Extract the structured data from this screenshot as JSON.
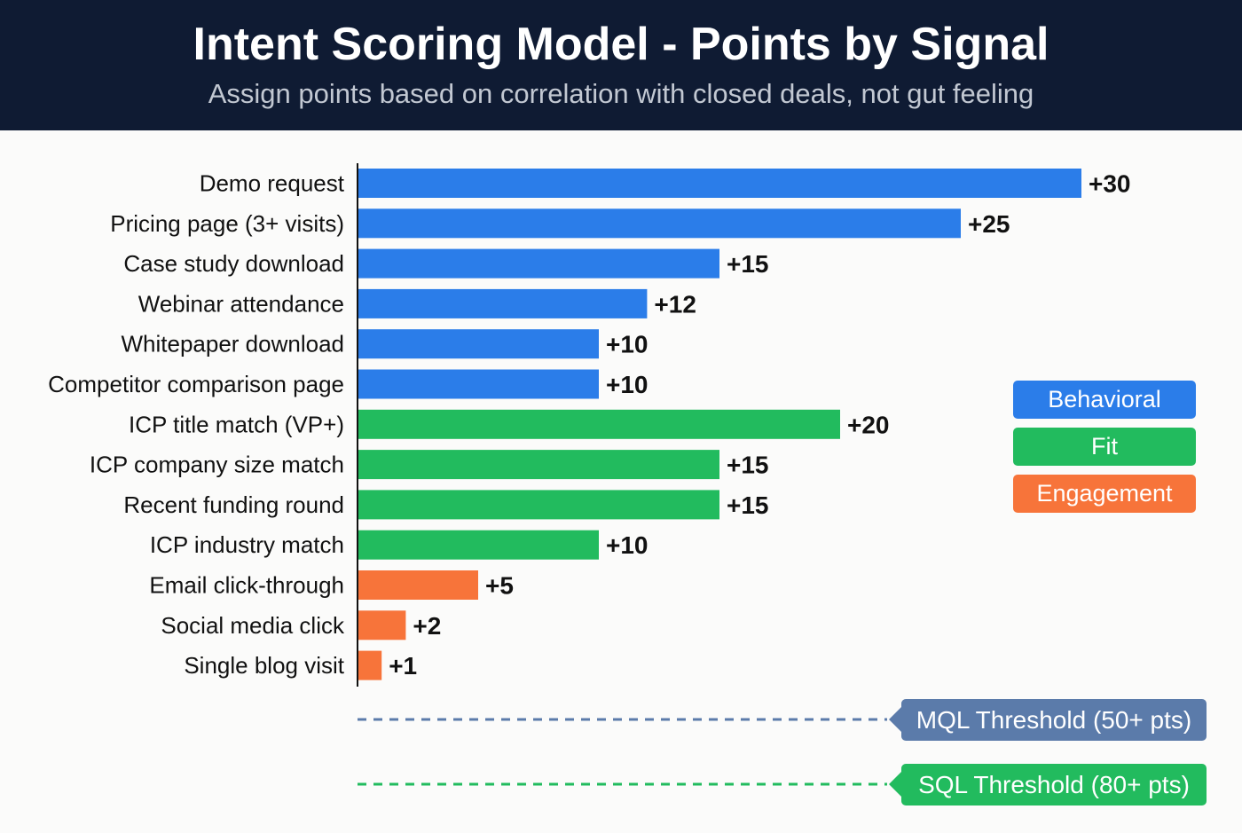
{
  "header": {
    "title": "Intent Scoring Model - Points by Signal",
    "subtitle": "Assign points based on correlation with closed deals, not gut feeling"
  },
  "colors": {
    "Behavioral": "#2b7de9",
    "Fit": "#22bb5e",
    "Engagement": "#f7743a",
    "mql": "#5b7baa",
    "sql": "#22bb5e"
  },
  "chart_data": {
    "type": "bar",
    "orientation": "horizontal",
    "title": "Intent Scoring Model - Points by Signal",
    "categories": [
      "Demo request",
      "Pricing page (3+ visits)",
      "Case study download",
      "Webinar attendance",
      "Whitepaper download",
      "Competitor comparison page",
      "ICP title match (VP+)",
      "ICP company size match",
      "Recent funding round",
      "ICP industry match",
      "Email click-through",
      "Social media click",
      "Single blog visit"
    ],
    "values": [
      30,
      25,
      15,
      12,
      10,
      10,
      20,
      15,
      15,
      10,
      5,
      2,
      1
    ],
    "groups": [
      "Behavioral",
      "Behavioral",
      "Behavioral",
      "Behavioral",
      "Behavioral",
      "Behavioral",
      "Fit",
      "Fit",
      "Fit",
      "Fit",
      "Engagement",
      "Engagement",
      "Engagement"
    ],
    "labels": [
      "+30",
      "+25",
      "+15",
      "+12",
      "+10",
      "+10",
      "+20",
      "+15",
      "+15",
      "+10",
      "+5",
      "+2",
      "+1"
    ],
    "xlim": [
      0,
      30
    ],
    "legend": [
      "Behavioral",
      "Fit",
      "Engagement"
    ],
    "legend_position": "right",
    "thresholds": [
      {
        "label": "MQL Threshold (50+ pts)",
        "value": 50
      },
      {
        "label": "SQL Threshold (80+ pts)",
        "value": 80
      }
    ]
  }
}
